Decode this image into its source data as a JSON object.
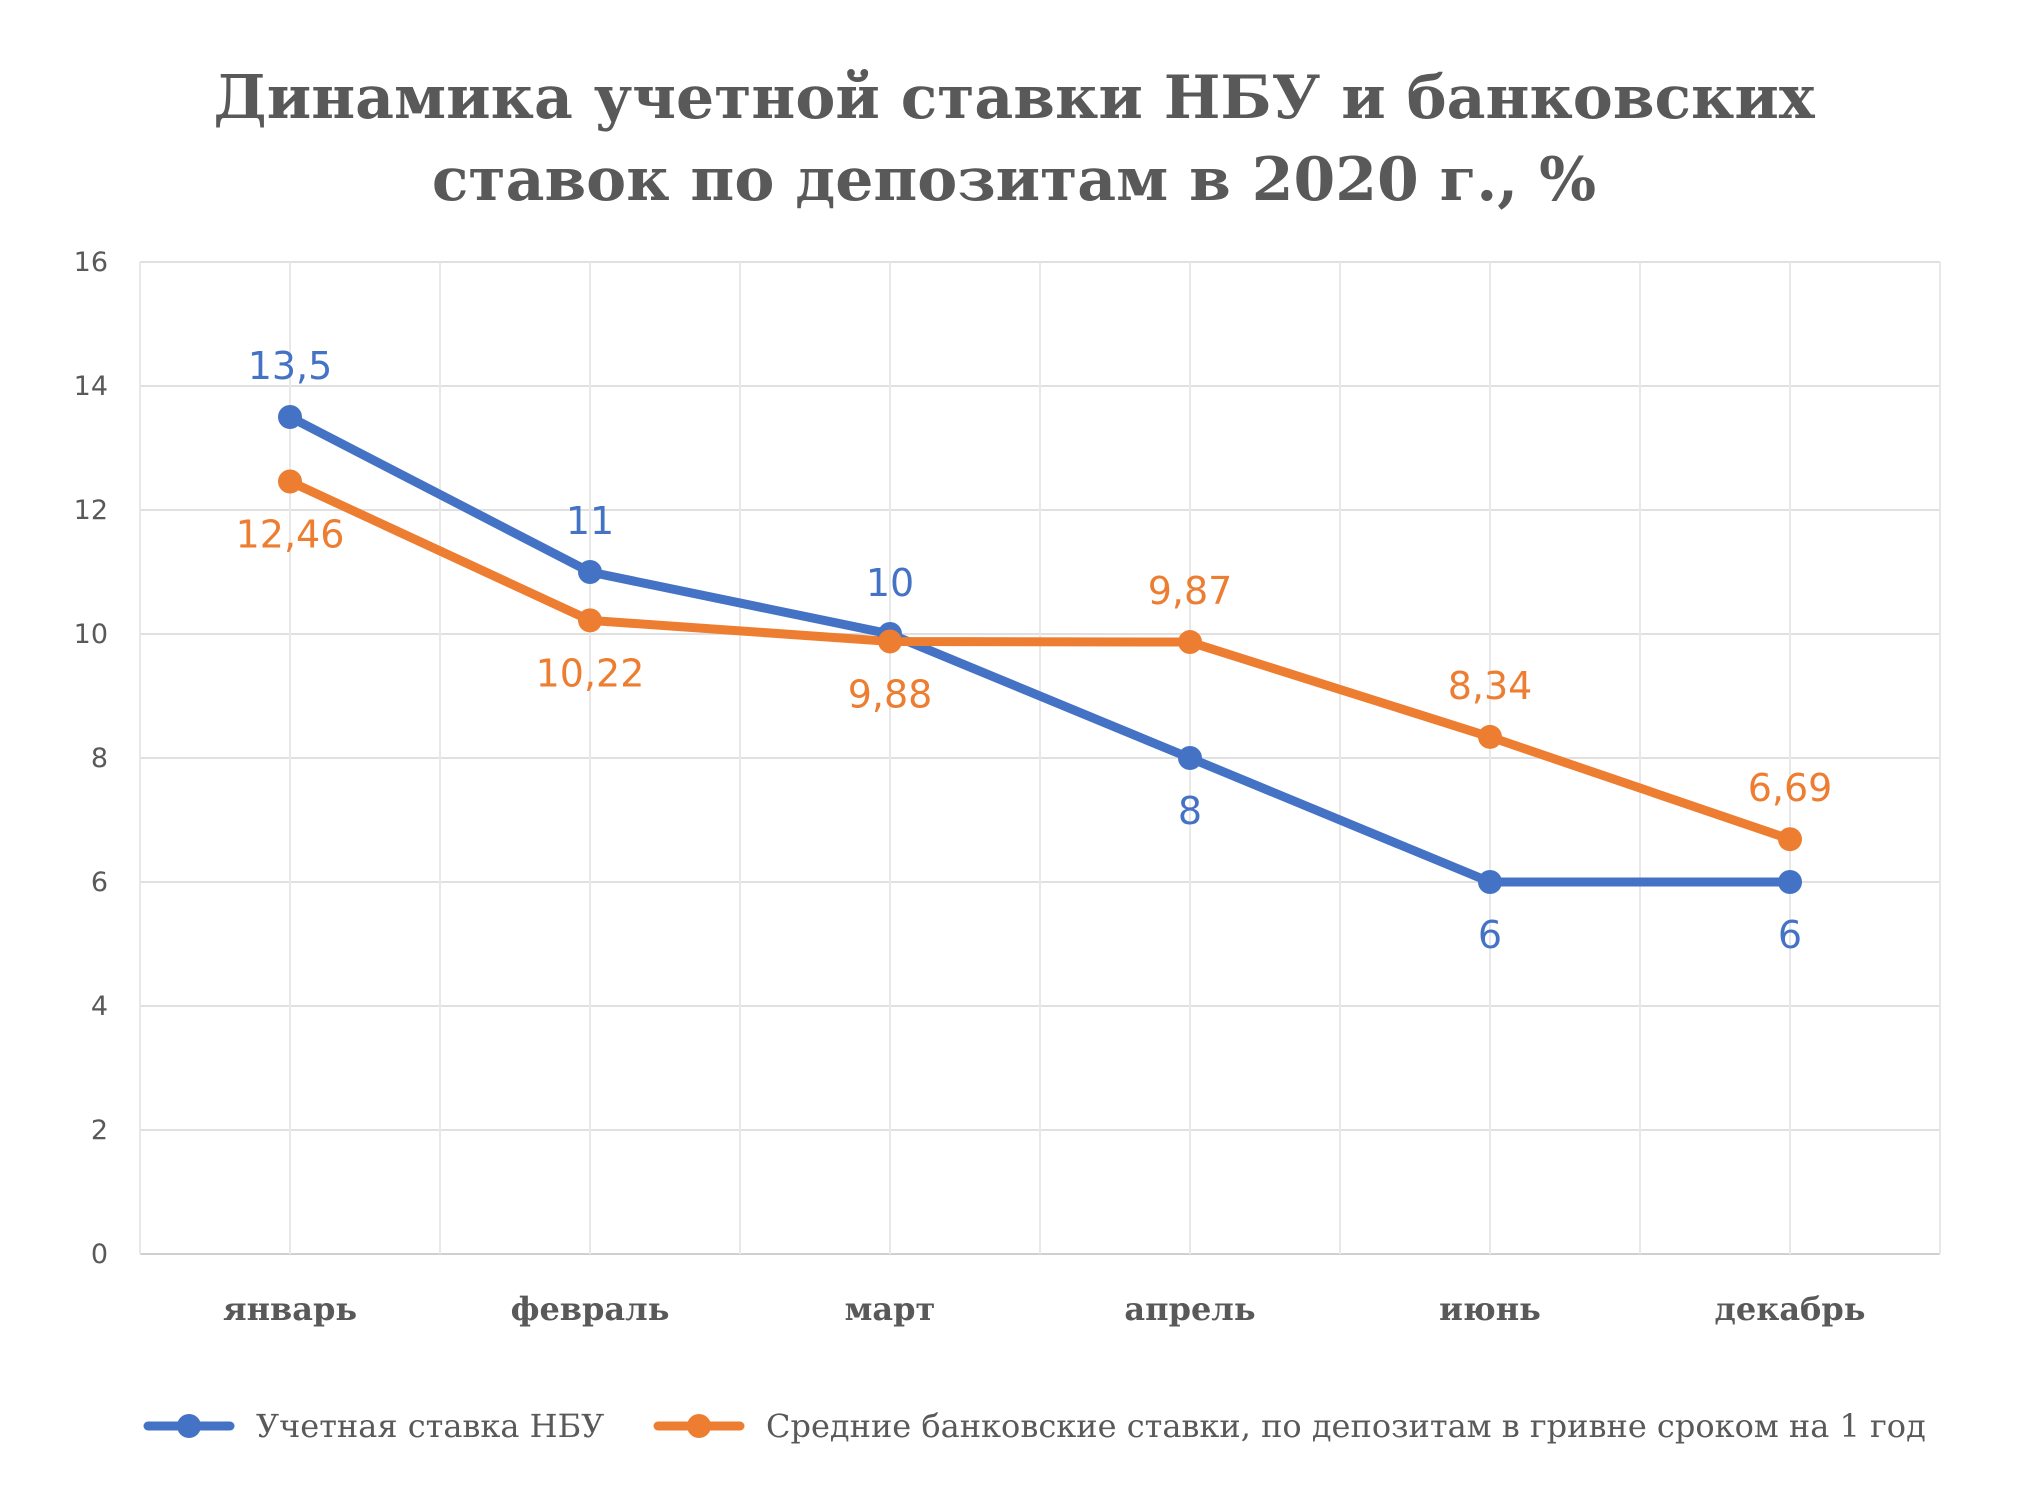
{
  "chart_data": {
    "type": "line",
    "title_lines": [
      "Динамика учетной ставки НБУ и банковских",
      "ставок по депозитам в 2020 г., %"
    ],
    "categories": [
      "январь",
      "февраль",
      "март",
      "апрель",
      "июнь",
      "декабрь"
    ],
    "ylim": [
      0,
      16
    ],
    "yticks": [
      0,
      2,
      4,
      6,
      8,
      10,
      12,
      14,
      16
    ],
    "grid": true,
    "legend_position": "bottom",
    "series": [
      {
        "name": "Учетная ставка НБУ",
        "color": "#4472C4",
        "values": [
          13.5,
          11,
          10,
          8,
          6,
          6
        ],
        "labels": [
          "13,5",
          "11",
          "10",
          "8",
          "6",
          "6"
        ],
        "label_positions": [
          "above",
          "above",
          "above",
          "below",
          "below",
          "below"
        ]
      },
      {
        "name": "Средние банковские ставки, по депозитам в гривне сроком на 1 год",
        "color": "#ED7D31",
        "values": [
          12.46,
          10.22,
          9.88,
          9.87,
          8.34,
          6.69
        ],
        "labels": [
          "12,46",
          "10,22",
          "9,88",
          "9,87",
          "8,34",
          "6,69"
        ],
        "label_positions": [
          "below",
          "below",
          "below",
          "above",
          "above",
          "above"
        ]
      }
    ]
  }
}
